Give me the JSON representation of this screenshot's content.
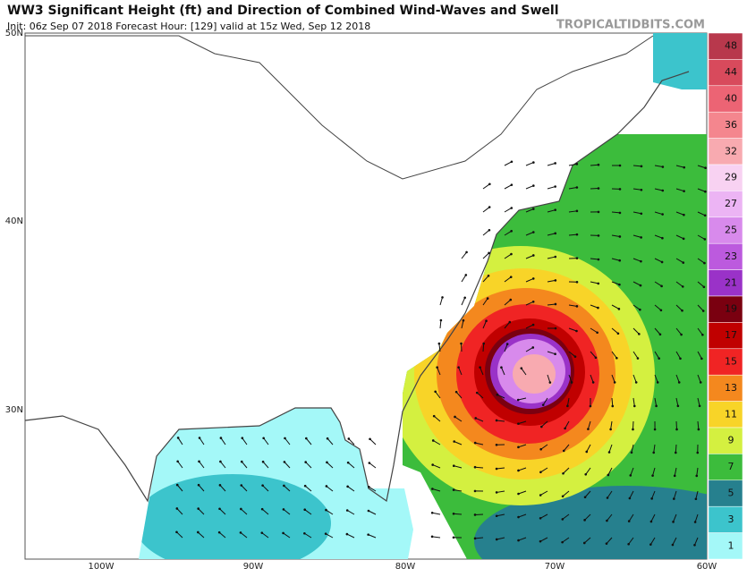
{
  "header": {
    "title": "WW3 Significant Height (ft) and Direction of Combined Wind-Waves and Swell",
    "subtitle": "Init: 06z Sep 07 2018   Forecast Hour: [129]   valid at 15z Wed, Sep 12 2018",
    "watermark": "TROPICALTIDBITS.COM"
  },
  "map": {
    "lat_labels": [
      "50N",
      "40N",
      "30N"
    ],
    "lon_labels": [
      "100W",
      "90W",
      "80W",
      "70W",
      "60W"
    ]
  },
  "colorbar": {
    "levels": [
      {
        "label": "48",
        "color": "#b8384c"
      },
      {
        "label": "44",
        "color": "#d84a5c"
      },
      {
        "label": "40",
        "color": "#ec6474"
      },
      {
        "label": "36",
        "color": "#f4868e"
      },
      {
        "label": "32",
        "color": "#f8aab0"
      },
      {
        "label": "29",
        "color": "#f8d2f2"
      },
      {
        "label": "27",
        "color": "#ecb4f4"
      },
      {
        "label": "25",
        "color": "#d88aec"
      },
      {
        "label": "23",
        "color": "#bc5ade"
      },
      {
        "label": "21",
        "color": "#9a32c8"
      },
      {
        "label": "19",
        "color": "#7a0010"
      },
      {
        "label": "17",
        "color": "#c00000"
      },
      {
        "label": "15",
        "color": "#f02424"
      },
      {
        "label": "13",
        "color": "#f4881e"
      },
      {
        "label": "11",
        "color": "#f8d428"
      },
      {
        "label": "9",
        "color": "#d4f040"
      },
      {
        "label": "7",
        "color": "#3cbc3c"
      },
      {
        "label": "5",
        "color": "#26808e"
      },
      {
        "label": "3",
        "color": "#3cc4cc"
      },
      {
        "label": "1",
        "color": "#a4f8f8"
      }
    ]
  }
}
